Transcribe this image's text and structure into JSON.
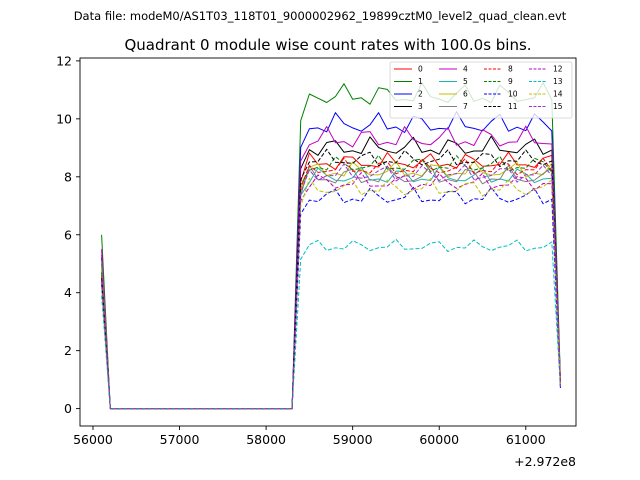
{
  "figure": {
    "suptitle": "Data file: modeM0/AS1T03_118T01_9000002962_19899cztM0_level2_quad_clean.evt",
    "title": "Quadrant 0 module wise count rates with 100.0s bins.",
    "x_offset_label": "+2.972e8"
  },
  "chart_data": {
    "type": "line",
    "title": "Quadrant 0 module wise count rates with 100.0s bins.",
    "xlabel": "",
    "ylabel": "",
    "x_offset": 297200000,
    "xlim": [
      55850,
      61580
    ],
    "ylim": [
      -0.6,
      12.1
    ],
    "x_ticks": [
      56000,
      57000,
      58000,
      59000,
      60000,
      61000
    ],
    "x_tick_labels": [
      "56000",
      "57000",
      "58000",
      "59000",
      "60000",
      "61000"
    ],
    "y_ticks": [
      0,
      2,
      4,
      6,
      8,
      10,
      12
    ],
    "y_tick_labels": [
      "0",
      "2",
      "4",
      "6",
      "8",
      "10",
      "12"
    ],
    "grid": false,
    "legend_position": "top-right",
    "legend_columns": 4,
    "series": [
      {
        "name": "0",
        "color": "#ff0000",
        "dash": "solid",
        "start": 5.3,
        "level": 8.5,
        "amp": 0.35,
        "end": 0.8
      },
      {
        "name": "1",
        "color": "#008000",
        "dash": "solid",
        "start": 6.0,
        "level": 10.8,
        "amp": 0.45,
        "end": 1.0
      },
      {
        "name": "2",
        "color": "#0000ff",
        "dash": "solid",
        "start": 5.2,
        "level": 9.8,
        "amp": 0.45,
        "end": 0.9
      },
      {
        "name": "3",
        "color": "#000000",
        "dash": "solid",
        "start": 5.0,
        "level": 9.0,
        "amp": 0.4,
        "end": 0.9
      },
      {
        "name": "4",
        "color": "#c000c0",
        "dash": "solid",
        "start": 5.5,
        "level": 9.3,
        "amp": 0.45,
        "end": 1.0
      },
      {
        "name": "5",
        "color": "#20b2aa",
        "dash": "solid",
        "start": 4.8,
        "level": 8.0,
        "amp": 0.35,
        "end": 0.8
      },
      {
        "name": "6",
        "color": "#c0c000",
        "dash": "solid",
        "start": 4.9,
        "level": 8.2,
        "amp": 0.35,
        "end": 0.9
      },
      {
        "name": "7",
        "color": "#808080",
        "dash": "solid",
        "start": 5.1,
        "level": 8.0,
        "amp": 0.4,
        "end": 0.8
      },
      {
        "name": "8",
        "color": "#ff0000",
        "dash": "dashed",
        "start": 4.6,
        "level": 8.3,
        "amp": 0.35,
        "end": 0.8
      },
      {
        "name": "9",
        "color": "#008000",
        "dash": "dashed",
        "start": 4.7,
        "level": 8.4,
        "amp": 0.35,
        "end": 0.9
      },
      {
        "name": "10",
        "color": "#0000ff",
        "dash": "dashed",
        "start": 4.3,
        "level": 7.3,
        "amp": 0.35,
        "end": 0.7
      },
      {
        "name": "11",
        "color": "#000000",
        "dash": "dashed",
        "start": 4.5,
        "level": 8.6,
        "amp": 0.35,
        "end": 0.8
      },
      {
        "name": "12",
        "color": "#c000c0",
        "dash": "dashed",
        "start": 4.4,
        "level": 7.8,
        "amp": 0.35,
        "end": 0.8
      },
      {
        "name": "13",
        "color": "#00c0c0",
        "dash": "dashed",
        "start": 3.9,
        "level": 5.6,
        "amp": 0.25,
        "end": 0.7
      },
      {
        "name": "14",
        "color": "#c0c000",
        "dash": "dashed",
        "start": 4.2,
        "level": 7.6,
        "amp": 0.35,
        "end": 0.8
      },
      {
        "name": "15",
        "color": "#9932cc",
        "dash": "dashed",
        "start": 4.4,
        "level": 8.1,
        "amp": 0.35,
        "end": 0.8
      }
    ]
  }
}
